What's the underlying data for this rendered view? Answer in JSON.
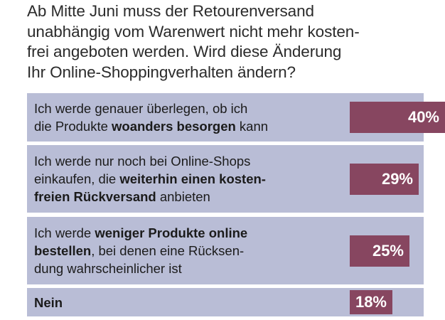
{
  "title_lines": [
    "Ab Mitte Juni muss der Retourenversand",
    "unabhängig vom Warenwert nicht mehr kosten-",
    "frei angeboten werden. Wird diese Änderung",
    "Ihr Online-Shoppingverhalten ändern?"
  ],
  "colors": {
    "row_background": "#b9bdd6",
    "bar": "#874660",
    "value_text": "#ffffff"
  },
  "chart_data": {
    "type": "bar",
    "orientation": "horizontal",
    "xlim": [
      0,
      100
    ],
    "unit": "%",
    "categories": [
      "Ich werde genauer überlegen, ob ich die Produkte woanders besorgen kann",
      "Ich werde nur noch bei Online-Shops einkaufen, die weiterhin einen kostenfreien Rückversand anbieten",
      "Ich werde weniger Produkte online bestellen, bei denen eine Rücksendung wahrscheinlicher ist",
      "Nein"
    ],
    "values": [
      40,
      29,
      25,
      18
    ],
    "value_labels": [
      "40%",
      "29%",
      "25%",
      "18%"
    ],
    "label_lines": [
      [
        [
          {
            "t": "Ich werde genauer überlegen, ob ich",
            "b": false
          }
        ],
        [
          {
            "t": "die Produkte ",
            "b": false
          },
          {
            "t": "woanders besorgen",
            "b": true
          },
          {
            "t": " kann",
            "b": false
          }
        ]
      ],
      [
        [
          {
            "t": "Ich werde nur noch bei Online-Shops",
            "b": false
          }
        ],
        [
          {
            "t": "einkaufen, die ",
            "b": false
          },
          {
            "t": "weiterhin einen kosten-",
            "b": true
          }
        ],
        [
          {
            "t": "freien Rückversand",
            "b": true
          },
          {
            "t": " anbieten",
            "b": false
          }
        ]
      ],
      [
        [
          {
            "t": "Ich werde ",
            "b": false
          },
          {
            "t": "weniger Produkte online",
            "b": true
          }
        ],
        [
          {
            "t": "bestellen",
            "b": true
          },
          {
            "t": ", bei denen eine Rücksen-",
            "b": false
          }
        ],
        [
          {
            "t": "dung wahrscheinlicher ist",
            "b": false
          }
        ]
      ],
      [
        [
          {
            "t": "Nein",
            "b": true
          }
        ]
      ]
    ]
  }
}
